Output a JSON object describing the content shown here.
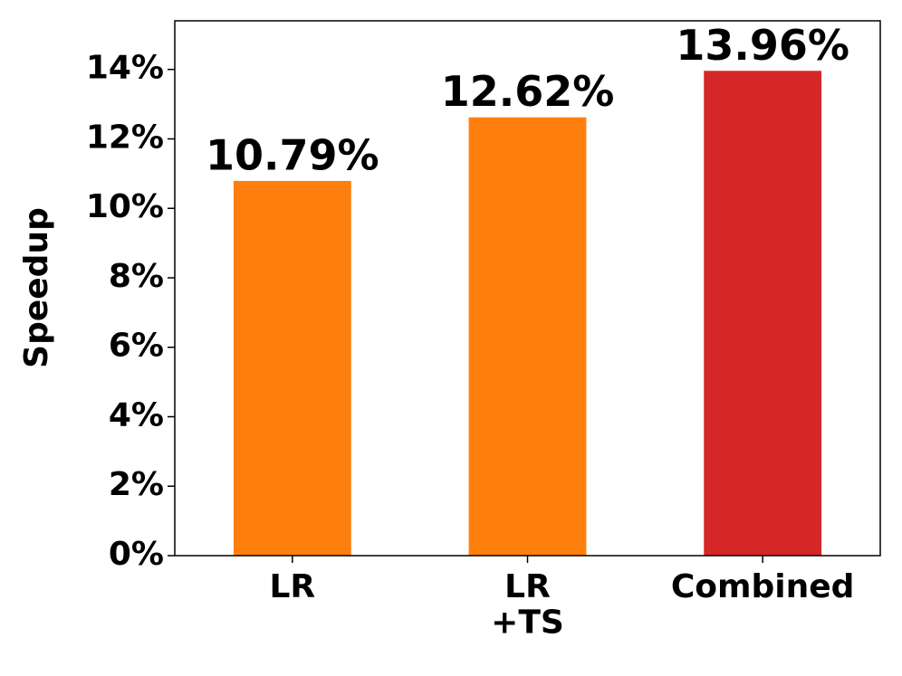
{
  "chart_data": {
    "type": "bar",
    "ylabel": "Speedup",
    "categories": [
      "LR",
      "LR\n+TS",
      "Combined"
    ],
    "values": [
      10.79,
      12.62,
      13.96
    ],
    "value_labels": [
      "10.79%",
      "12.62%",
      "13.96%"
    ],
    "colors": [
      "#ff7f0e",
      "#ff7f0e",
      "#d62728"
    ],
    "ylim": [
      0,
      15.4
    ],
    "yticks": [
      {
        "value": 0,
        "label": "0%"
      },
      {
        "value": 2,
        "label": "2%"
      },
      {
        "value": 4,
        "label": "4%"
      },
      {
        "value": 6,
        "label": "6%"
      },
      {
        "value": 8,
        "label": "8%"
      },
      {
        "value": 10,
        "label": "10%"
      },
      {
        "value": 12,
        "label": "12%"
      },
      {
        "value": 14,
        "label": "14%"
      }
    ],
    "grid": false
  }
}
